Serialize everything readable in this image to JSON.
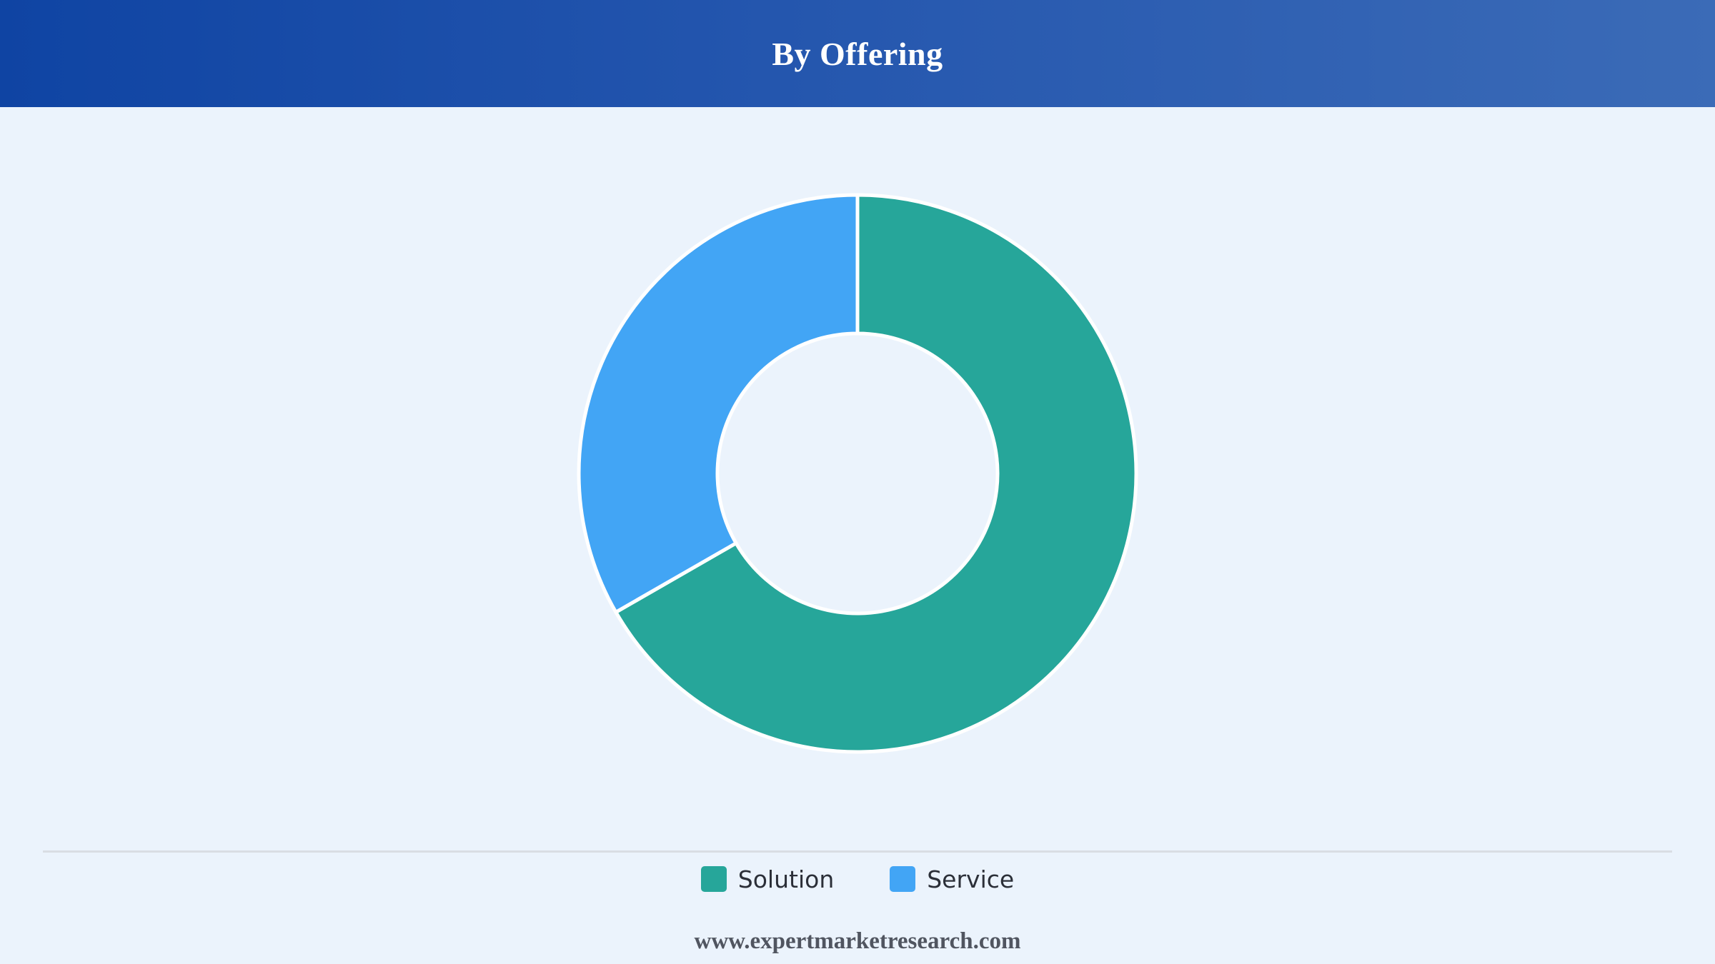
{
  "header": {
    "title": "By Offering"
  },
  "chart_data": {
    "type": "pie",
    "variant": "donut",
    "title": "By Offering",
    "categories": [
      "Solution",
      "Service"
    ],
    "values": [
      66.7,
      33.3
    ],
    "unit": "%",
    "colors": [
      "#26a69a",
      "#42a5f5"
    ],
    "legend_position": "bottom"
  },
  "legend": {
    "items": [
      {
        "label": "Solution",
        "color": "#26a69a"
      },
      {
        "label": "Service",
        "color": "#42a5f5"
      }
    ]
  },
  "footer": {
    "text": "www.expertmarketresearch.com"
  }
}
